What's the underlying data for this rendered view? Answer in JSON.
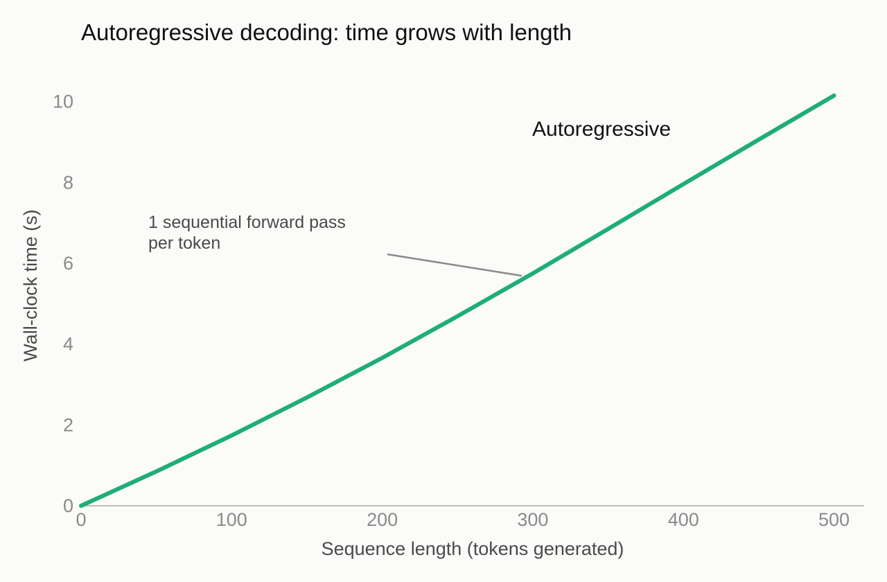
{
  "chart_data": {
    "type": "line",
    "title": "Autoregressive decoding: time grows with length",
    "xlabel": "Sequence length (tokens generated)",
    "ylabel": "Wall-clock time (s)",
    "xlim": [
      0,
      520
    ],
    "ylim": [
      0,
      10.8
    ],
    "x_ticks": [
      0,
      100,
      200,
      300,
      400,
      500
    ],
    "y_ticks": [
      0,
      2,
      4,
      6,
      8,
      10
    ],
    "grid": false,
    "series": [
      {
        "name": "Autoregressive",
        "color": "#1fad78",
        "x": [
          0,
          50,
          100,
          150,
          200,
          250,
          300,
          350,
          400,
          450,
          500
        ],
        "y": [
          0,
          0.85,
          1.74,
          2.68,
          3.66,
          4.69,
          5.75,
          6.85,
          7.96,
          9.06,
          10.15
        ]
      }
    ],
    "annotations": [
      {
        "lines": [
          "1 sequential forward pass",
          "per token"
        ],
        "color": "#4a4a4a"
      }
    ]
  }
}
